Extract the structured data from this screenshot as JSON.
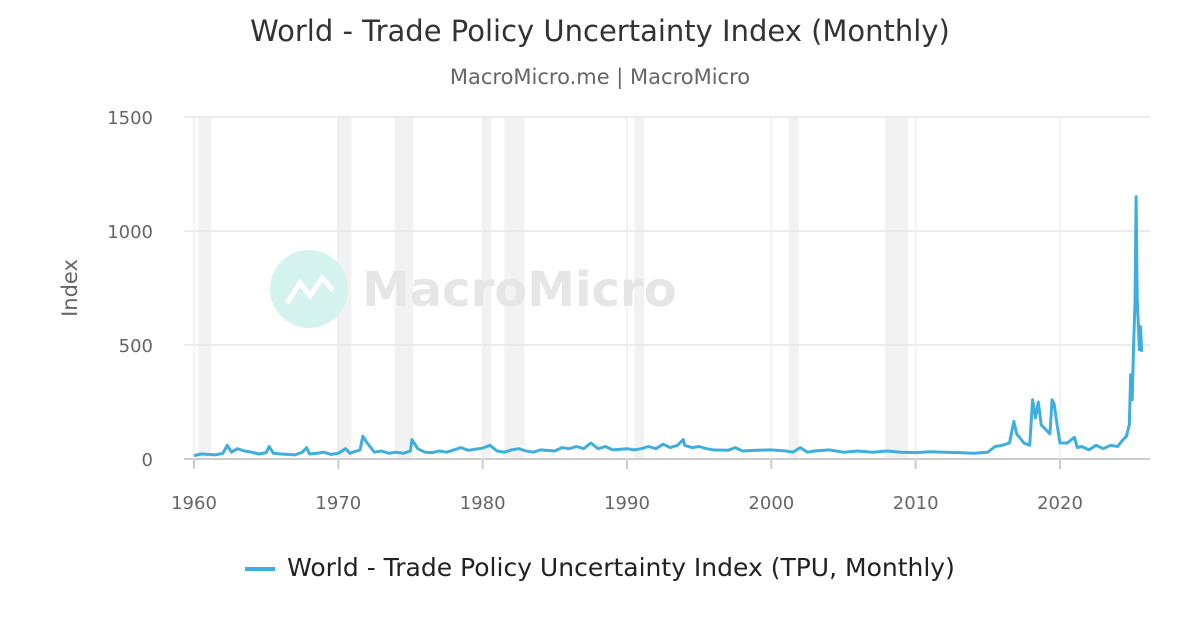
{
  "chart_data": {
    "type": "line",
    "title": "World - Trade Policy Uncertainty Index (Monthly)",
    "subtitle": "MacroMicro.me | MacroMicro",
    "ylabel": "Index",
    "xlabel": "",
    "xlim": [
      1959.8,
      2026.5
    ],
    "ylim": [
      0,
      1500
    ],
    "yticks": [
      0,
      500,
      1000,
      1500
    ],
    "xticks": [
      1960,
      1970,
      1980,
      1990,
      2000,
      2010,
      2020
    ],
    "grid": true,
    "legend_position": "bottom",
    "watermark": "MacroMicro",
    "color": "#3eafdc",
    "recession_color": "#f2f2f2",
    "recessions": [
      [
        1960.3,
        1961.2
      ],
      [
        1969.9,
        1970.9
      ],
      [
        1973.9,
        1975.2
      ],
      [
        1980.0,
        1980.6
      ],
      [
        1981.5,
        1982.9
      ],
      [
        1990.5,
        1991.2
      ],
      [
        2001.2,
        2001.9
      ],
      [
        2007.9,
        2009.5
      ]
    ],
    "series": [
      {
        "name": "World - Trade Policy Uncertainty Index (TPU, Monthly)",
        "points": [
          [
            1960,
            15
          ],
          [
            1960.5,
            22
          ],
          [
            1961,
            20
          ],
          [
            1961.5,
            18
          ],
          [
            1962,
            25
          ],
          [
            1962.3,
            60
          ],
          [
            1962.6,
            30
          ],
          [
            1963,
            45
          ],
          [
            1963.5,
            35
          ],
          [
            1964,
            30
          ],
          [
            1964.5,
            22
          ],
          [
            1965,
            28
          ],
          [
            1965.2,
            55
          ],
          [
            1965.5,
            25
          ],
          [
            1966,
            22
          ],
          [
            1966.5,
            20
          ],
          [
            1967,
            18
          ],
          [
            1967.5,
            30
          ],
          [
            1967.8,
            50
          ],
          [
            1968,
            22
          ],
          [
            1968.5,
            25
          ],
          [
            1969,
            30
          ],
          [
            1969.5,
            20
          ],
          [
            1970,
            25
          ],
          [
            1970.5,
            45
          ],
          [
            1970.8,
            25
          ],
          [
            1971,
            30
          ],
          [
            1971.5,
            40
          ],
          [
            1971.7,
            100
          ],
          [
            1972,
            70
          ],
          [
            1972.5,
            30
          ],
          [
            1973,
            35
          ],
          [
            1973.5,
            25
          ],
          [
            1974,
            30
          ],
          [
            1974.5,
            25
          ],
          [
            1975,
            35
          ],
          [
            1975.1,
            85
          ],
          [
            1975.5,
            45
          ],
          [
            1976,
            30
          ],
          [
            1976.5,
            28
          ],
          [
            1977,
            35
          ],
          [
            1977.5,
            30
          ],
          [
            1978,
            40
          ],
          [
            1978.5,
            50
          ],
          [
            1979,
            38
          ],
          [
            1980,
            48
          ],
          [
            1980.5,
            60
          ],
          [
            1981,
            35
          ],
          [
            1981.5,
            30
          ],
          [
            1982,
            40
          ],
          [
            1982.5,
            45
          ],
          [
            1983,
            35
          ],
          [
            1983.5,
            30
          ],
          [
            1984,
            40
          ],
          [
            1985,
            35
          ],
          [
            1985.5,
            50
          ],
          [
            1986,
            45
          ],
          [
            1986.5,
            55
          ],
          [
            1987,
            45
          ],
          [
            1987.5,
            70
          ],
          [
            1988,
            45
          ],
          [
            1988.5,
            55
          ],
          [
            1989,
            40
          ],
          [
            1990,
            45
          ],
          [
            1990.5,
            40
          ],
          [
            1991,
            45
          ],
          [
            1991.5,
            55
          ],
          [
            1992,
            45
          ],
          [
            1992.5,
            65
          ],
          [
            1993,
            50
          ],
          [
            1993.5,
            60
          ],
          [
            1993.9,
            85
          ],
          [
            1994,
            60
          ],
          [
            1994.5,
            50
          ],
          [
            1995,
            55
          ],
          [
            1995.5,
            45
          ],
          [
            1996,
            40
          ],
          [
            1997,
            38
          ],
          [
            1997.5,
            50
          ],
          [
            1998,
            35
          ],
          [
            1999,
            38
          ],
          [
            2000,
            40
          ],
          [
            2001,
            35
          ],
          [
            2001.5,
            30
          ],
          [
            2002,
            50
          ],
          [
            2002.5,
            30
          ],
          [
            2003,
            35
          ],
          [
            2004,
            40
          ],
          [
            2005,
            30
          ],
          [
            2006,
            35
          ],
          [
            2007,
            30
          ],
          [
            2008,
            35
          ],
          [
            2009,
            30
          ],
          [
            2010,
            28
          ],
          [
            2011,
            32
          ],
          [
            2012,
            30
          ],
          [
            2013,
            28
          ],
          [
            2014,
            25
          ],
          [
            2015,
            30
          ],
          [
            2015.5,
            55
          ],
          [
            2016,
            60
          ],
          [
            2016.5,
            70
          ],
          [
            2016.8,
            165
          ],
          [
            2017,
            110
          ],
          [
            2017.5,
            70
          ],
          [
            2017.9,
            60
          ],
          [
            2018.1,
            260
          ],
          [
            2018.3,
            180
          ],
          [
            2018.5,
            250
          ],
          [
            2018.7,
            150
          ],
          [
            2019,
            130
          ],
          [
            2019.3,
            110
          ],
          [
            2019.45,
            260
          ],
          [
            2019.6,
            240
          ],
          [
            2019.8,
            150
          ],
          [
            2020,
            70
          ],
          [
            2020.5,
            70
          ],
          [
            2021,
            95
          ],
          [
            2021.2,
            50
          ],
          [
            2021.5,
            55
          ],
          [
            2022,
            40
          ],
          [
            2022.5,
            60
          ],
          [
            2023,
            45
          ],
          [
            2023.5,
            60
          ],
          [
            2024,
            55
          ],
          [
            2024.3,
            80
          ],
          [
            2024.6,
            100
          ],
          [
            2024.8,
            150
          ],
          [
            2024.9,
            370
          ],
          [
            2025.0,
            260
          ],
          [
            2025.1,
            500
          ],
          [
            2025.2,
            700
          ],
          [
            2025.27,
            1150
          ],
          [
            2025.35,
            700
          ],
          [
            2025.42,
            600
          ],
          [
            2025.5,
            480
          ],
          [
            2025.58,
            580
          ],
          [
            2025.66,
            470
          ]
        ]
      }
    ]
  }
}
